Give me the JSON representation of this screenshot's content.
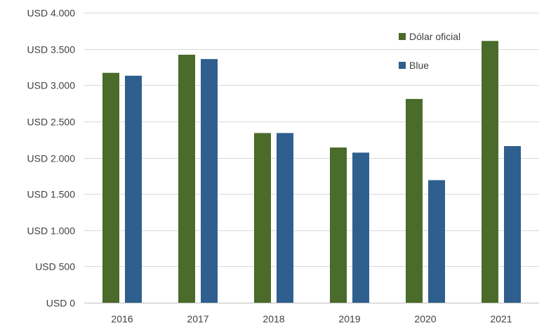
{
  "chart_data": {
    "type": "bar",
    "categories": [
      "2016",
      "2017",
      "2018",
      "2019",
      "2020",
      "2021"
    ],
    "series": [
      {
        "name": "Dólar oficial",
        "color": "#4a6b2a",
        "values": [
          3170,
          3420,
          2340,
          2140,
          2810,
          3610
        ]
      },
      {
        "name": "Blue",
        "color": "#2f5f8f",
        "values": [
          3130,
          3360,
          2340,
          2070,
          1690,
          2160
        ]
      }
    ],
    "y_ticks": [
      0,
      500,
      1000,
      1500,
      2000,
      2500,
      3000,
      3500,
      4000
    ],
    "y_tick_labels": [
      "USD 0",
      "USD 500",
      "USD 1.000",
      "USD 1.500",
      "USD 2.000",
      "USD 2.500",
      "USD 3.000",
      "USD 3.500",
      "USD 4.000"
    ],
    "ylim": [
      0,
      4000
    ],
    "grid": true,
    "legend_position": "top-right",
    "title": "",
    "xlabel": "",
    "ylabel": "",
    "gridline_color": "#d9d9d9",
    "axis_line_color": "#bfbfbf"
  }
}
